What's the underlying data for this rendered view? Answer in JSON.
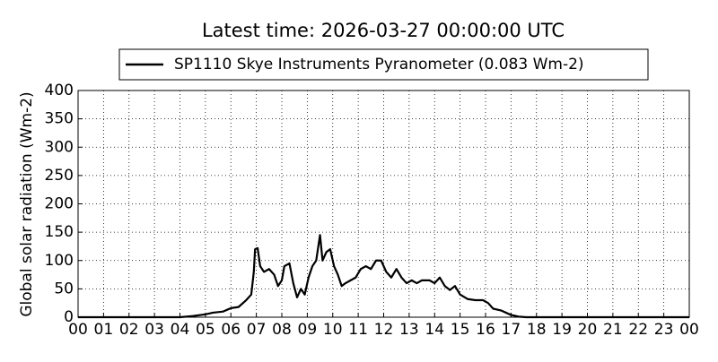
{
  "chart_data": {
    "type": "line",
    "title": "Latest time: 2026-03-27 00:00:00 UTC",
    "y_label": "Global solar radiation (Wm-2)",
    "x": [
      0,
      4,
      4.5,
      5,
      5.3,
      5.7,
      6,
      6.3,
      6.6,
      6.8,
      6.9,
      6.95,
      7.05,
      7.15,
      7.3,
      7.5,
      7.7,
      7.85,
      8.0,
      8.1,
      8.3,
      8.45,
      8.6,
      8.75,
      8.9,
      9.05,
      9.2,
      9.35,
      9.5,
      9.6,
      9.75,
      9.9,
      10.05,
      10.2,
      10.35,
      10.5,
      10.7,
      10.9,
      11.1,
      11.3,
      11.5,
      11.7,
      11.9,
      12.1,
      12.3,
      12.5,
      12.7,
      12.9,
      13.1,
      13.3,
      13.5,
      13.8,
      14.0,
      14.2,
      14.4,
      14.6,
      14.8,
      15.0,
      15.3,
      15.6,
      15.9,
      16.1,
      16.3,
      16.6,
      16.8,
      17.0,
      17.3,
      17.6,
      24
    ],
    "series": [
      {
        "name": "SP1110 Skye Instruments Pyranometer (0.083 Wm-2)",
        "color": "#000000",
        "values": [
          0,
          0,
          2,
          5,
          8,
          10,
          16,
          18,
          30,
          40,
          80,
          120,
          122,
          90,
          80,
          85,
          75,
          55,
          65,
          90,
          95,
          60,
          35,
          50,
          40,
          70,
          90,
          100,
          145,
          100,
          115,
          120,
          90,
          75,
          55,
          60,
          65,
          70,
          85,
          90,
          85,
          100,
          100,
          80,
          70,
          85,
          70,
          60,
          65,
          60,
          65,
          65,
          60,
          70,
          55,
          48,
          55,
          40,
          32,
          30,
          30,
          25,
          15,
          12,
          8,
          4,
          1,
          0,
          0
        ]
      }
    ],
    "xlim": [
      0,
      24
    ],
    "xticks": [
      {
        "value": 0,
        "label": "00"
      },
      {
        "value": 1,
        "label": "01"
      },
      {
        "value": 2,
        "label": "02"
      },
      {
        "value": 3,
        "label": "03"
      },
      {
        "value": 4,
        "label": "04"
      },
      {
        "value": 5,
        "label": "05"
      },
      {
        "value": 6,
        "label": "06"
      },
      {
        "value": 7,
        "label": "07"
      },
      {
        "value": 8,
        "label": "08"
      },
      {
        "value": 9,
        "label": "09"
      },
      {
        "value": 10,
        "label": "10"
      },
      {
        "value": 11,
        "label": "11"
      },
      {
        "value": 12,
        "label": "12"
      },
      {
        "value": 13,
        "label": "13"
      },
      {
        "value": 14,
        "label": "14"
      },
      {
        "value": 15,
        "label": "15"
      },
      {
        "value": 16,
        "label": "16"
      },
      {
        "value": 17,
        "label": "17"
      },
      {
        "value": 18,
        "label": "18"
      },
      {
        "value": 19,
        "label": "19"
      },
      {
        "value": 20,
        "label": "20"
      },
      {
        "value": 21,
        "label": "21"
      },
      {
        "value": 22,
        "label": "22"
      },
      {
        "value": 23,
        "label": "23"
      },
      {
        "value": 24,
        "label": "00"
      }
    ],
    "ylim": [
      0,
      400
    ],
    "yticks": [
      0,
      50,
      100,
      150,
      200,
      250,
      300,
      350,
      400
    ],
    "grid": true
  }
}
